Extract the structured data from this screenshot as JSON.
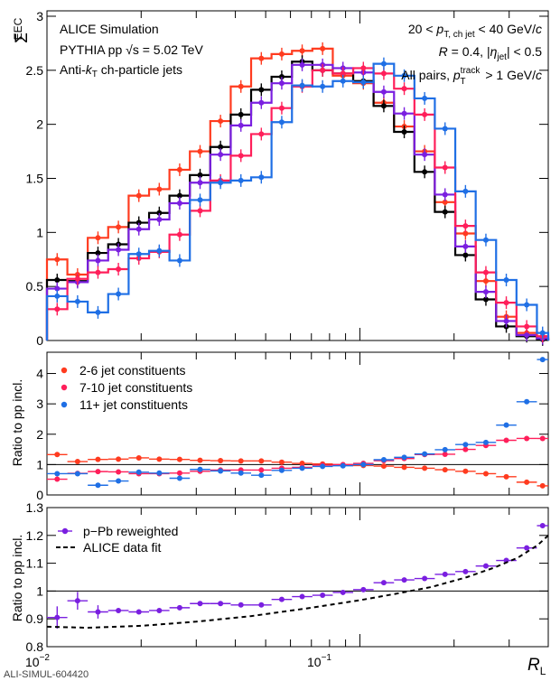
{
  "top": {
    "ylabel": "Σ",
    "ylabel_sub": "EEC",
    "ann_left": [
      "ALICE Simulation",
      "PYTHIA pp √s = 5.02 TeV",
      "Anti-kT ch-particle jets"
    ],
    "ann_right": [
      "20 < pT, ch jet < 40 GeV/c",
      "R = 0.4, |ηjet| < 0.5",
      "All pairs, pTtrack > 1 GeV/c"
    ]
  },
  "mid": {
    "ylabel": "Ratio to pp incl."
  },
  "bot": {
    "ylabel": "Ratio to pp incl."
  },
  "xaxis": {
    "label": "R",
    "label_sub": "L",
    "tick_main": "10",
    "tick_exp": [
      "−2",
      "−1"
    ]
  },
  "footer": "ALI-SIMUL-604420",
  "colors": {
    "c26": "#ff3b1f",
    "c710": "#ff1f5a",
    "c11": "#1f6fe5",
    "incl": "#000000",
    "pPb": "#7a1fe0"
  },
  "chart_data": [
    {
      "panel": "top",
      "type": "line",
      "x_scale": "log",
      "xlim": [
        0.01,
        0.4
      ],
      "ylim": [
        0,
        3.05
      ],
      "yticks": [
        "0",
        "0.5",
        "1",
        "1.5",
        "2",
        "2.5",
        "3"
      ],
      "x_bin_edges": [
        0.01,
        0.01162,
        0.0135,
        0.01569,
        0.01824,
        0.0212,
        0.02463,
        0.02862,
        0.03326,
        0.03866,
        0.04492,
        0.0522,
        0.06067,
        0.0705,
        0.08193,
        0.0952,
        0.1106,
        0.1286,
        0.1494,
        0.1736,
        0.2018,
        0.2345,
        0.2725,
        0.3166,
        0.368,
        0.4
      ],
      "series": [
        {
          "name": "",
          "key": "c26",
          "values": [
            0.75,
            0.61,
            0.95,
            1.05,
            1.34,
            1.4,
            1.58,
            1.75,
            2.03,
            2.35,
            2.61,
            2.65,
            2.68,
            2.7,
            2.45,
            2.38,
            2.2,
            1.98,
            1.75,
            1.28,
            0.99,
            0.55,
            0.22,
            0.07,
            0.02
          ]
        },
        {
          "name": "",
          "key": "incl",
          "values": [
            0.56,
            0.55,
            0.81,
            0.89,
            1.09,
            1.18,
            1.34,
            1.53,
            1.79,
            2.09,
            2.32,
            2.44,
            2.58,
            2.5,
            2.47,
            2.4,
            2.17,
            1.93,
            1.56,
            1.19,
            0.79,
            0.38,
            0.13,
            0.04,
            0.01
          ]
        },
        {
          "name": "",
          "key": "pPb",
          "values": [
            0.48,
            0.54,
            0.74,
            0.84,
            1.03,
            1.12,
            1.27,
            1.46,
            1.72,
            1.99,
            2.2,
            2.38,
            2.55,
            2.55,
            2.52,
            2.48,
            2.3,
            2.1,
            1.72,
            1.35,
            0.87,
            0.45,
            0.18,
            0.05,
            0.02
          ]
        },
        {
          "name": "",
          "key": "c710",
          "values": [
            0.29,
            0.57,
            0.63,
            0.66,
            0.76,
            0.82,
            0.98,
            1.2,
            1.48,
            1.71,
            1.91,
            2.15,
            2.35,
            2.5,
            2.47,
            2.52,
            2.47,
            2.33,
            2.09,
            1.6,
            1.06,
            0.63,
            0.35,
            0.13,
            0.04
          ]
        },
        {
          "name": "",
          "key": "c11",
          "values": [
            0.41,
            0.36,
            0.26,
            0.43,
            0.8,
            0.83,
            0.74,
            1.3,
            1.46,
            1.48,
            1.51,
            2.02,
            2.36,
            2.35,
            2.4,
            2.39,
            2.56,
            2.45,
            2.24,
            1.96,
            1.38,
            0.93,
            0.56,
            0.33,
            0.07
          ]
        }
      ]
    },
    {
      "panel": "middle",
      "type": "scatter",
      "x_scale": "log",
      "ylim": [
        0,
        4.7
      ],
      "yticks": [
        "0",
        "1",
        "2",
        "3",
        "4"
      ],
      "refline": 1,
      "legend_position": "left",
      "series": [
        {
          "name": "2-6 jet constituents",
          "key": "c26",
          "values": [
            1.33,
            1.1,
            1.17,
            1.18,
            1.22,
            1.18,
            1.17,
            1.14,
            1.13,
            1.12,
            1.12,
            1.08,
            1.04,
            1.02,
            0.98,
            0.97,
            0.95,
            0.91,
            0.88,
            0.83,
            0.78,
            0.7,
            0.6,
            0.42,
            0.3
          ]
        },
        {
          "name": "7-10 jet constituents",
          "key": "c710",
          "values": [
            0.52,
            0.71,
            0.77,
            0.76,
            0.7,
            0.7,
            0.72,
            0.78,
            0.82,
            0.82,
            0.82,
            0.88,
            0.91,
            0.98,
            1.0,
            1.04,
            1.13,
            1.2,
            1.33,
            1.34,
            1.5,
            1.63,
            1.8,
            1.86,
            1.86
          ]
        },
        {
          "name": "11+ jet constituents",
          "key": "c11",
          "values": [
            0.7,
            0.7,
            0.32,
            0.46,
            0.75,
            0.72,
            0.55,
            0.84,
            0.79,
            0.72,
            0.65,
            0.81,
            0.88,
            0.94,
            0.96,
            1.0,
            1.16,
            1.24,
            1.35,
            1.49,
            1.66,
            1.73,
            2.3,
            3.07,
            4.46
          ]
        }
      ]
    },
    {
      "panel": "bottom",
      "type": "scatter",
      "x_scale": "log",
      "ylim": [
        0.8,
        1.3
      ],
      "yticks": [
        "0.8",
        "0.9",
        "1",
        "1.1",
        "1.2",
        "1.3"
      ],
      "refline": 1,
      "legend_position": "top-left",
      "series": [
        {
          "name": "p−Pb reweighted",
          "key": "pPb",
          "values": [
            0.905,
            0.965,
            0.925,
            0.93,
            0.925,
            0.93,
            0.94,
            0.955,
            0.955,
            0.95,
            0.95,
            0.97,
            0.98,
            0.985,
            0.995,
            1.005,
            1.03,
            1.04,
            1.045,
            1.06,
            1.07,
            1.09,
            1.11,
            1.155,
            1.235
          ]
        },
        {
          "name": "ALICE data fit",
          "key": "incl",
          "type": "dashed-line",
          "x": [
            0.01,
            0.0135,
            0.02,
            0.03,
            0.045,
            0.07,
            0.1,
            0.13,
            0.17,
            0.22,
            0.27,
            0.32,
            0.37,
            0.4
          ],
          "y": [
            0.872,
            0.868,
            0.875,
            0.89,
            0.91,
            0.94,
            0.967,
            0.99,
            1.015,
            1.05,
            1.085,
            1.12,
            1.165,
            1.2
          ]
        }
      ]
    }
  ]
}
